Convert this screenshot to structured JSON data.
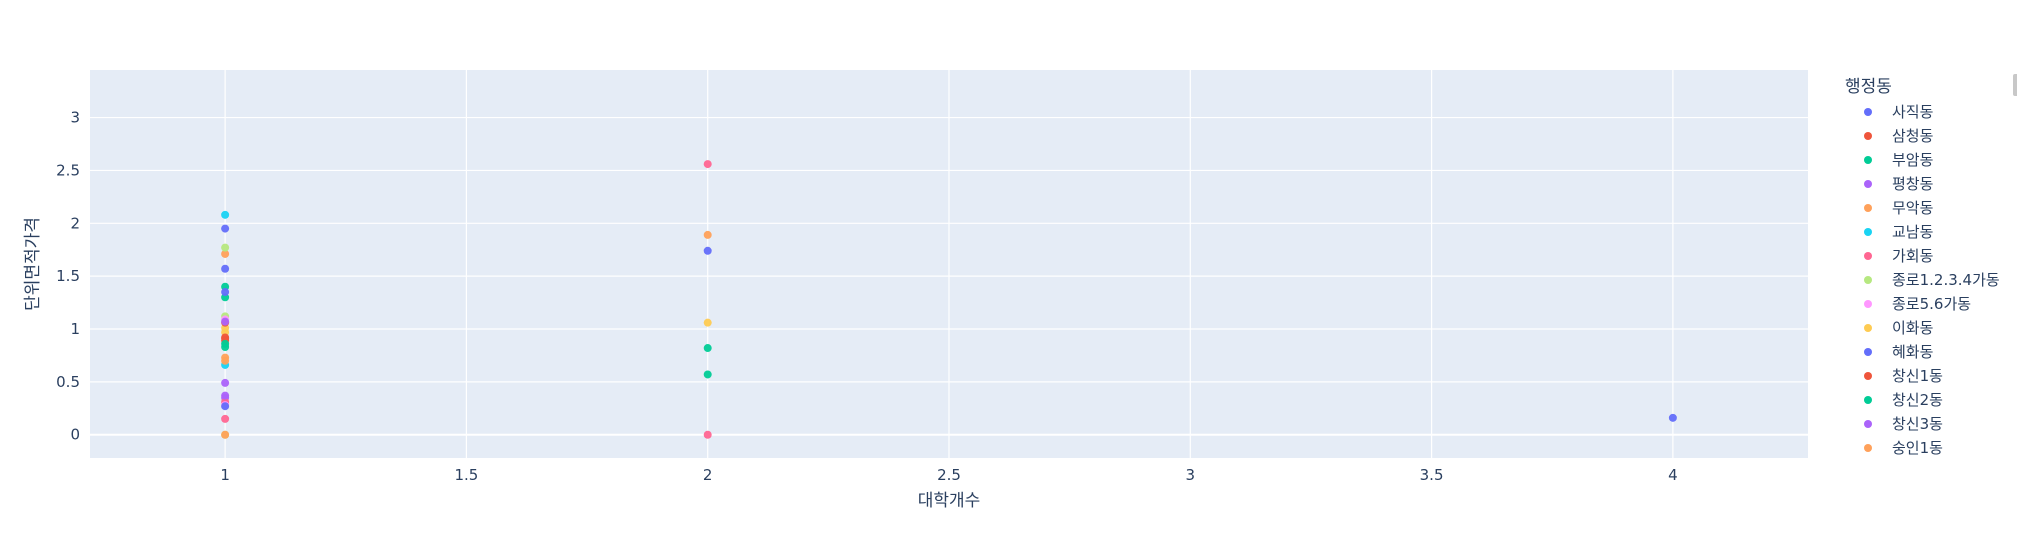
{
  "chart_data": {
    "type": "scatter",
    "xlabel": "대학개수",
    "ylabel": "단위면적가격",
    "xlim": [
      0.72,
      4.28
    ],
    "ylim": [
      -0.22,
      3.45
    ],
    "xticks": [
      1,
      1.5,
      2,
      2.5,
      3,
      3.5,
      4
    ],
    "yticks": [
      0,
      0.5,
      1,
      1.5,
      2,
      2.5,
      3
    ],
    "grid": true,
    "legend": {
      "title": "행정동",
      "position": "right"
    },
    "series": [
      {
        "name": "사직동",
        "color": "#636efa",
        "points": [
          [
            1,
            1.95
          ],
          [
            1,
            1.57
          ],
          [
            2,
            1.74
          ],
          [
            4,
            0.16
          ]
        ]
      },
      {
        "name": "삼청동",
        "color": "#ef553b",
        "points": [
          [
            1,
            0.91
          ],
          [
            1,
            0.89
          ]
        ]
      },
      {
        "name": "부암동",
        "color": "#00cc96",
        "points": [
          [
            1,
            1.4
          ],
          [
            1,
            1.3
          ],
          [
            2,
            0.82
          ]
        ]
      },
      {
        "name": "평창동",
        "color": "#ab63fa",
        "points": [
          [
            1,
            0.49
          ],
          [
            1,
            0.35
          ]
        ]
      },
      {
        "name": "무악동",
        "color": "#ffa15a",
        "points": [
          [
            1,
            1.71
          ],
          [
            1,
            0.73
          ],
          [
            2,
            1.89
          ]
        ]
      },
      {
        "name": "교남동",
        "color": "#19d3f3",
        "points": [
          [
            1,
            2.08
          ],
          [
            1,
            0.66
          ]
        ]
      },
      {
        "name": "가회동",
        "color": "#ff6692",
        "points": [
          [
            1,
            0.15
          ],
          [
            1,
            0.31
          ],
          [
            2,
            2.56
          ],
          [
            2,
            0.0
          ]
        ]
      },
      {
        "name": "종로1.2.3.4가동",
        "color": "#b6e880",
        "points": [
          [
            1,
            1.77
          ],
          [
            1,
            1.12
          ],
          [
            1,
            0.0
          ]
        ]
      },
      {
        "name": "종로5.6가동",
        "color": "#ff97ff",
        "points": [
          [
            1,
            1.09
          ],
          [
            1,
            0.28
          ]
        ]
      },
      {
        "name": "이화동",
        "color": "#fecb52",
        "points": [
          [
            1,
            1.01
          ],
          [
            1,
            0.97
          ],
          [
            2,
            1.06
          ]
        ]
      },
      {
        "name": "혜화동",
        "color": "#636efa",
        "points": [
          [
            1,
            1.35
          ],
          [
            1,
            0.27
          ]
        ]
      },
      {
        "name": "창신1동",
        "color": "#ef553b",
        "points": [
          [
            1,
            0.92
          ],
          [
            1,
            1.06
          ]
        ]
      },
      {
        "name": "창신2동",
        "color": "#00cc96",
        "points": [
          [
            1,
            0.86
          ],
          [
            1,
            0.83
          ],
          [
            2,
            0.57
          ]
        ]
      },
      {
        "name": "창신3동",
        "color": "#ab63fa",
        "points": [
          [
            1,
            1.07
          ],
          [
            1,
            0.37
          ]
        ]
      },
      {
        "name": "숭인1동",
        "color": "#ffa15a",
        "points": [
          [
            1,
            0.7
          ],
          [
            1,
            0.0
          ]
        ]
      }
    ]
  }
}
